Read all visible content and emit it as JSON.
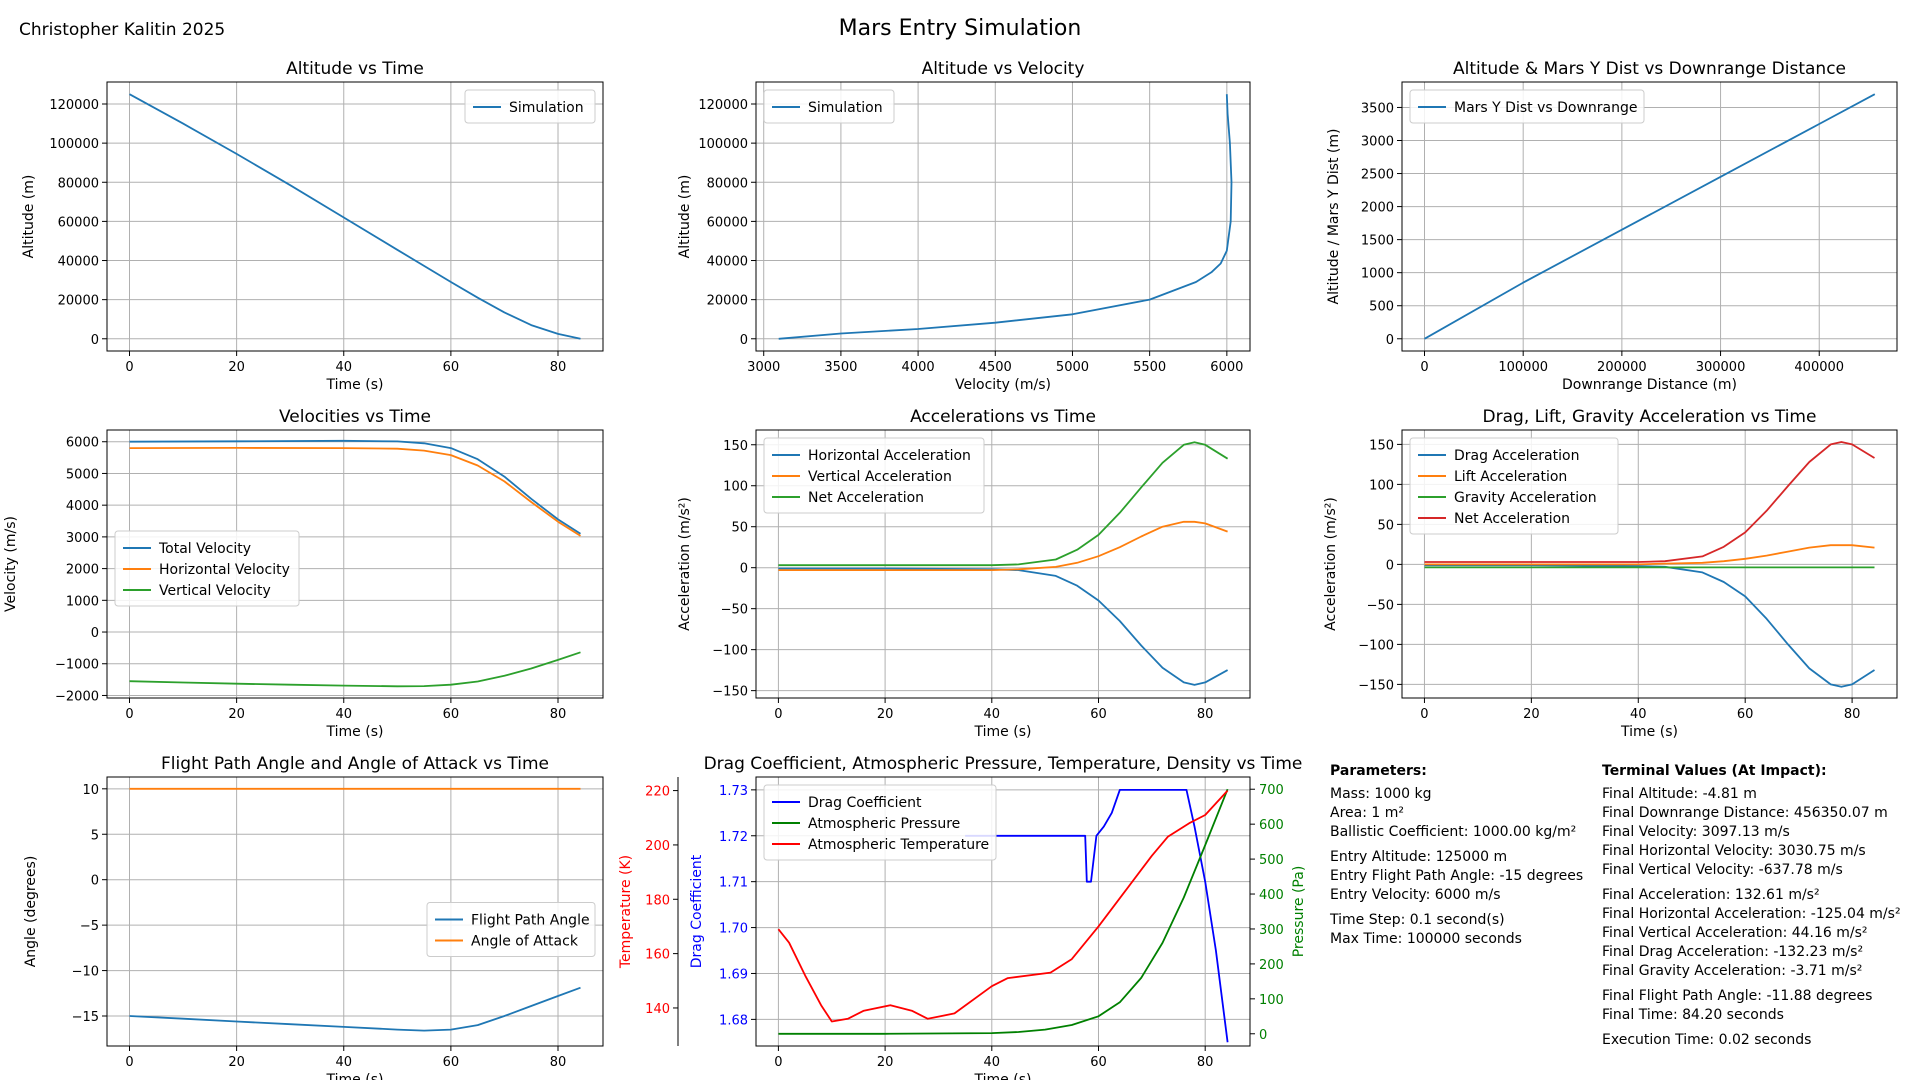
{
  "author": "Christopher Kalitin 2025",
  "suptitle": "Mars Entry Simulation",
  "colors": {
    "blue": "#1f77b4",
    "orange": "#ff7f0e",
    "green": "#2ca02c",
    "red": "#d62728"
  },
  "chart_data": [
    {
      "type": "line",
      "title": "Altitude vs Time",
      "xlabel": "Time (s)",
      "ylabel": "Altitude (m)",
      "xlim": [
        -4.2,
        88.4
      ],
      "ylim": [
        -6250,
        131250
      ],
      "xticks": [
        0,
        20,
        40,
        60,
        80
      ],
      "yticks": [
        0,
        20000,
        40000,
        60000,
        80000,
        100000,
        120000
      ],
      "grid": true,
      "legend": "upper right",
      "series": [
        {
          "name": "Simulation",
          "color": "#1f77b4",
          "x": [
            0,
            10,
            20,
            30,
            40,
            50,
            60,
            65,
            70,
            75,
            80,
            84.2
          ],
          "y": [
            125000,
            110000,
            94500,
            78500,
            62000,
            45500,
            29000,
            21000,
            13500,
            7000,
            2500,
            0
          ]
        }
      ]
    },
    {
      "type": "line",
      "title": "Altitude vs Velocity",
      "xlabel": "Velocity (m/s)",
      "ylabel": "Altitude (m)",
      "xlim": [
        2950,
        6150
      ],
      "ylim": [
        -6250,
        131250
      ],
      "xticks": [
        3000,
        3500,
        4000,
        4500,
        5000,
        5500,
        6000
      ],
      "yticks": [
        0,
        20000,
        40000,
        60000,
        80000,
        100000,
        120000
      ],
      "grid": true,
      "legend": "upper left",
      "series": [
        {
          "name": "Simulation",
          "color": "#1f77b4",
          "x": [
            3097,
            3500,
            4000,
            4500,
            5000,
            5500,
            5800,
            5900,
            5960,
            6000,
            6025,
            6030,
            6020,
            6005,
            6000
          ],
          "y": [
            0,
            2700,
            5000,
            8200,
            12500,
            20000,
            29000,
            34000,
            38500,
            45000,
            60000,
            80000,
            100000,
            115000,
            125000
          ]
        }
      ]
    },
    {
      "type": "line",
      "title": "Altitude & Mars Y Dist vs Downrange Distance",
      "xlabel": "Downrange Distance (m)",
      "ylabel": "Altitude / Mars Y Dist (m)",
      "xlim": [
        -22800,
        478800
      ],
      "ylim": [
        -185,
        3885
      ],
      "xticks": [
        0,
        100000,
        200000,
        300000,
        400000
      ],
      "yticks": [
        0,
        500,
        1000,
        1500,
        2000,
        2500,
        3000,
        3500
      ],
      "grid": true,
      "legend": "upper left",
      "series": [
        {
          "name": "Mars Y Dist vs Downrange",
          "color": "#1f77b4",
          "x": [
            0,
            100000,
            200000,
            300000,
            400000,
            456350
          ],
          "y": [
            0,
            850,
            1650,
            2450,
            3250,
            3700
          ]
        }
      ]
    },
    {
      "type": "line",
      "title": "Velocities vs Time",
      "xlabel": "Time (s)",
      "ylabel": "Velocity (m/s)",
      "xlim": [
        -4.2,
        88.4
      ],
      "ylim": [
        -2080,
        6370
      ],
      "xticks": [
        0,
        20,
        40,
        60,
        80
      ],
      "yticks": [
        -2000,
        -1000,
        0,
        1000,
        2000,
        3000,
        4000,
        5000,
        6000
      ],
      "grid": true,
      "legend": "center left",
      "series": [
        {
          "name": "Total Velocity",
          "color": "#1f77b4",
          "x": [
            0,
            20,
            40,
            50,
            55,
            60,
            65,
            70,
            75,
            80,
            84.2
          ],
          "y": [
            6000,
            6015,
            6030,
            6010,
            5950,
            5800,
            5450,
            4900,
            4200,
            3550,
            3097
          ]
        },
        {
          "name": "Horizontal Velocity",
          "color": "#ff7f0e",
          "x": [
            0,
            20,
            40,
            50,
            55,
            60,
            65,
            70,
            75,
            80,
            84.2
          ],
          "y": [
            5800,
            5805,
            5800,
            5780,
            5720,
            5580,
            5250,
            4750,
            4100,
            3480,
            3031
          ]
        },
        {
          "name": "Vertical Velocity",
          "color": "#2ca02c",
          "x": [
            0,
            10,
            20,
            30,
            40,
            50,
            55,
            60,
            65,
            70,
            75,
            80,
            84.2
          ],
          "y": [
            -1550,
            -1590,
            -1630,
            -1660,
            -1690,
            -1710,
            -1705,
            -1660,
            -1560,
            -1380,
            -1150,
            -880,
            -638
          ]
        }
      ]
    },
    {
      "type": "line",
      "title": "Accelerations vs Time",
      "xlabel": "Time (s)",
      "ylabel": "Acceleration (m/s²)",
      "xlim": [
        -4.2,
        88.4
      ],
      "ylim": [
        -159,
        168
      ],
      "xticks": [
        0,
        20,
        40,
        60,
        80
      ],
      "yticks": [
        -150,
        -100,
        -50,
        0,
        50,
        100,
        150
      ],
      "grid": true,
      "legend": "upper left",
      "series": [
        {
          "name": "Horizontal Acceleration",
          "color": "#1f77b4",
          "x": [
            0,
            20,
            40,
            45,
            52,
            56,
            60,
            64,
            68,
            72,
            76,
            78,
            80,
            84.2
          ],
          "y": [
            -1,
            -1,
            -2,
            -3,
            -10,
            -22,
            -40,
            -65,
            -95,
            -122,
            -140,
            -143,
            -140,
            -125
          ]
        },
        {
          "name": "Vertical Acceleration",
          "color": "#ff7f0e",
          "x": [
            0,
            20,
            40,
            45,
            52,
            56,
            60,
            64,
            68,
            72,
            76,
            78,
            80,
            84.2
          ],
          "y": [
            -3,
            -3,
            -3,
            -2,
            1,
            6,
            14,
            25,
            38,
            50,
            56,
            56,
            54,
            44
          ]
        },
        {
          "name": "Net Acceleration",
          "color": "#2ca02c",
          "x": [
            0,
            20,
            40,
            45,
            52,
            56,
            60,
            64,
            68,
            72,
            76,
            78,
            80,
            84.2
          ],
          "y": [
            3,
            3,
            3,
            4,
            10,
            22,
            40,
            67,
            98,
            128,
            150,
            153,
            150,
            133
          ]
        }
      ]
    },
    {
      "type": "line",
      "title": "Drag, Lift, Gravity Acceleration vs Time",
      "xlabel": "Time (s)",
      "ylabel": "Acceleration (m/s²)",
      "xlim": [
        -4.2,
        88.4
      ],
      "ylim": [
        -167,
        168
      ],
      "xticks": [
        0,
        20,
        40,
        60,
        80
      ],
      "yticks": [
        -150,
        -100,
        -50,
        0,
        50,
        100,
        150
      ],
      "grid": true,
      "legend": "upper left",
      "series": [
        {
          "name": "Drag Acceleration",
          "color": "#1f77b4",
          "x": [
            0,
            20,
            40,
            45,
            52,
            56,
            60,
            64,
            68,
            72,
            76,
            78,
            80,
            84.2
          ],
          "y": [
            -1,
            -1,
            -2,
            -3,
            -10,
            -22,
            -40,
            -68,
            -100,
            -130,
            -150,
            -153,
            -150,
            -132
          ]
        },
        {
          "name": "Lift Acceleration",
          "color": "#ff7f0e",
          "x": [
            0,
            20,
            40,
            45,
            52,
            56,
            60,
            64,
            68,
            72,
            76,
            78,
            80,
            84.2
          ],
          "y": [
            0,
            0,
            0,
            1,
            2,
            4,
            7,
            11,
            16,
            21,
            24,
            24,
            24,
            21
          ]
        },
        {
          "name": "Gravity Acceleration",
          "color": "#2ca02c",
          "x": [
            0,
            84.2
          ],
          "y": [
            -3.7,
            -3.7
          ]
        },
        {
          "name": "Net Acceleration",
          "color": "#d62728",
          "x": [
            0,
            20,
            40,
            45,
            52,
            56,
            60,
            64,
            68,
            72,
            76,
            78,
            80,
            84.2
          ],
          "y": [
            3,
            3,
            3,
            4,
            10,
            22,
            40,
            67,
            98,
            128,
            150,
            153,
            150,
            133
          ]
        }
      ]
    },
    {
      "type": "line",
      "title": "Flight Path Angle and Angle of Attack vs Time",
      "xlabel": "Time (s)",
      "ylabel": "Angle (degrees)",
      "xlim": [
        -4.2,
        88.4
      ],
      "ylim": [
        -18.3,
        11.3
      ],
      "xticks": [
        0,
        20,
        40,
        60,
        80
      ],
      "yticks": [
        -15,
        -10,
        -5,
        0,
        5,
        10
      ],
      "grid": true,
      "legend": "center right",
      "series": [
        {
          "name": "Flight Path Angle",
          "color": "#1f77b4",
          "x": [
            0,
            10,
            20,
            30,
            40,
            50,
            55,
            60,
            65,
            70,
            75,
            80,
            84.2
          ],
          "y": [
            -15,
            -15.3,
            -15.6,
            -15.9,
            -16.2,
            -16.5,
            -16.6,
            -16.5,
            -16.0,
            -15.0,
            -13.9,
            -12.8,
            -11.88
          ]
        },
        {
          "name": "Angle of Attack",
          "color": "#ff7f0e",
          "x": [
            0,
            84.2
          ],
          "y": [
            10,
            10
          ]
        }
      ]
    },
    {
      "type": "line",
      "title": "Drag Coefficient, Atmospheric Pressure, Temperature, Density vs Time",
      "xlabel": "Time (s)",
      "ylabel": "Drag Coefficient",
      "ylabel_right": "Pressure (Pa)",
      "ylabel_outer": "Temperature (K)",
      "xlim": [
        -4.2,
        88.4
      ],
      "ylim": [
        1.6742,
        1.7328
      ],
      "ylim_right": [
        -35,
        735
      ],
      "ylim_outer": [
        126,
        225
      ],
      "xticks": [
        0,
        20,
        40,
        60,
        80
      ],
      "yticks": [
        1.68,
        1.69,
        1.7,
        1.71,
        1.72,
        1.73
      ],
      "yticks_right": [
        0,
        100,
        200,
        300,
        400,
        500,
        600,
        700
      ],
      "yticks_outer": [
        140,
        160,
        180,
        200,
        220
      ],
      "grid": true,
      "legend": "upper left",
      "series": [
        {
          "name": "Drag Coefficient",
          "color": "#0000ff",
          "axis": "left",
          "x": [
            35,
            57.5,
            57.8,
            58.6,
            59.6,
            61,
            62.5,
            64,
            76.5,
            78,
            80,
            82,
            84.2
          ],
          "y": [
            1.72,
            1.72,
            1.71,
            1.71,
            1.72,
            1.722,
            1.725,
            1.73,
            1.73,
            1.722,
            1.71,
            1.695,
            1.675
          ]
        },
        {
          "name": "Atmospheric Pressure",
          "color": "#008000",
          "axis": "right",
          "x": [
            0,
            20,
            40,
            45,
            50,
            55,
            60,
            64,
            68,
            72,
            76,
            80,
            84.2
          ],
          "y": [
            0,
            0,
            2,
            5,
            12,
            25,
            50,
            90,
            160,
            260,
            390,
            540,
            700
          ]
        },
        {
          "name": "Atmospheric Temperature",
          "color": "#ff0000",
          "axis": "outer",
          "x": [
            0,
            2,
            5,
            8,
            10,
            13,
            16,
            21,
            25,
            28,
            33,
            40,
            43,
            51,
            55,
            60,
            65,
            70,
            73,
            77,
            80,
            84.2
          ],
          "y": [
            169,
            164,
            152,
            141,
            135,
            136,
            139,
            141,
            139,
            136,
            138,
            148,
            151,
            153,
            158,
            170,
            183,
            196,
            203,
            208,
            211,
            220
          ]
        }
      ]
    }
  ],
  "parameters": {
    "heading": "Parameters:",
    "groups": [
      [
        "Mass: 1000 kg",
        "Area: 1 m²",
        "Ballistic Coefficient: 1000.00 kg/m²"
      ],
      [
        "Entry Altitude: 125000 m",
        "Entry Flight Path Angle: -15 degrees",
        "Entry Velocity: 6000 m/s"
      ],
      [
        "Time Step: 0.1 second(s)",
        "Max Time: 100000 seconds"
      ]
    ]
  },
  "terminal": {
    "heading": "Terminal Values (At Impact):",
    "groups": [
      [
        "Final Altitude: -4.81 m",
        "Final Downrange Distance: 456350.07 m",
        "Final Velocity: 3097.13 m/s",
        "Final Horizontal Velocity: 3030.75 m/s",
        "Final Vertical Velocity: -637.78 m/s"
      ],
      [
        "Final Acceleration: 132.61 m/s²",
        "Final Horizontal Acceleration: -125.04 m/s²",
        "Final Vertical Acceleration: 44.16 m/s²",
        "Final Drag Acceleration: -132.23 m/s²",
        "Final Gravity Acceleration: -3.71 m/s²"
      ],
      [
        "Final Flight Path Angle: -11.88 degrees",
        "Final Time: 84.20 seconds"
      ],
      [
        "Execution Time: 0.02 seconds"
      ]
    ]
  }
}
